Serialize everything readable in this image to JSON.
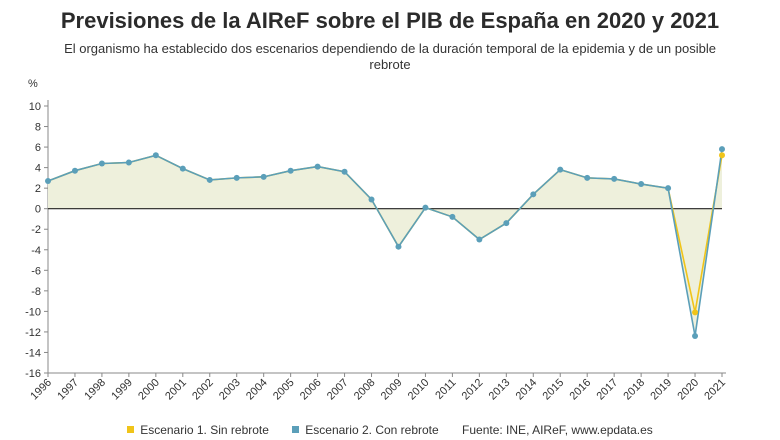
{
  "header": {
    "title": "Previsiones de la AIReF sobre el PIB de España en 2020 y 2021",
    "subtitle": "El organismo ha establecido dos escenarios dependiendo de la duración temporal de la epidemia y de un posible rebrote"
  },
  "footer": {
    "source": "Fuente: INE, AIReF, www.epdata.es"
  },
  "colors": {
    "scenario1": "#f0c419",
    "scenario2": "#5b9fb9",
    "area_fill": "#eef0dc",
    "zero_line": "#222222"
  },
  "chart_data": {
    "type": "line",
    "title": "Previsiones de la AIReF sobre el PIB de España en 2020 y 2021",
    "ylabel": "%",
    "ylim": [
      -16,
      10
    ],
    "yticks": [
      10,
      8,
      6,
      4,
      2,
      0,
      -2,
      -4,
      -6,
      -8,
      -10,
      -12,
      -14,
      -16
    ],
    "grid": false,
    "legend_placement": "bottom",
    "x": [
      "1996",
      "1997",
      "1998",
      "1999",
      "2000",
      "2001",
      "2002",
      "2003",
      "2004",
      "2005",
      "2006",
      "2007",
      "2008",
      "2009",
      "2010",
      "2011",
      "2012",
      "2013",
      "2014",
      "2015",
      "2016",
      "2017",
      "2018",
      "2019",
      "2020",
      "2021"
    ],
    "series": [
      {
        "name": "Escenario 1. Sin rebrote",
        "color": "#f0c419",
        "values": [
          2.7,
          3.7,
          4.4,
          4.5,
          5.2,
          3.9,
          2.8,
          3.0,
          3.1,
          3.7,
          4.1,
          3.6,
          0.9,
          -3.7,
          0.1,
          -0.8,
          -3.0,
          -1.4,
          1.4,
          3.8,
          3.0,
          2.9,
          2.4,
          2.0,
          -10.1,
          5.2
        ]
      },
      {
        "name": "Escenario 2. Con rebrote",
        "color": "#5b9fb9",
        "values": [
          2.7,
          3.7,
          4.4,
          4.5,
          5.2,
          3.9,
          2.8,
          3.0,
          3.1,
          3.7,
          4.1,
          3.6,
          0.9,
          -3.7,
          0.1,
          -0.8,
          -3.0,
          -1.4,
          1.4,
          3.8,
          3.0,
          2.9,
          2.4,
          2.0,
          -12.4,
          5.8
        ]
      }
    ]
  }
}
